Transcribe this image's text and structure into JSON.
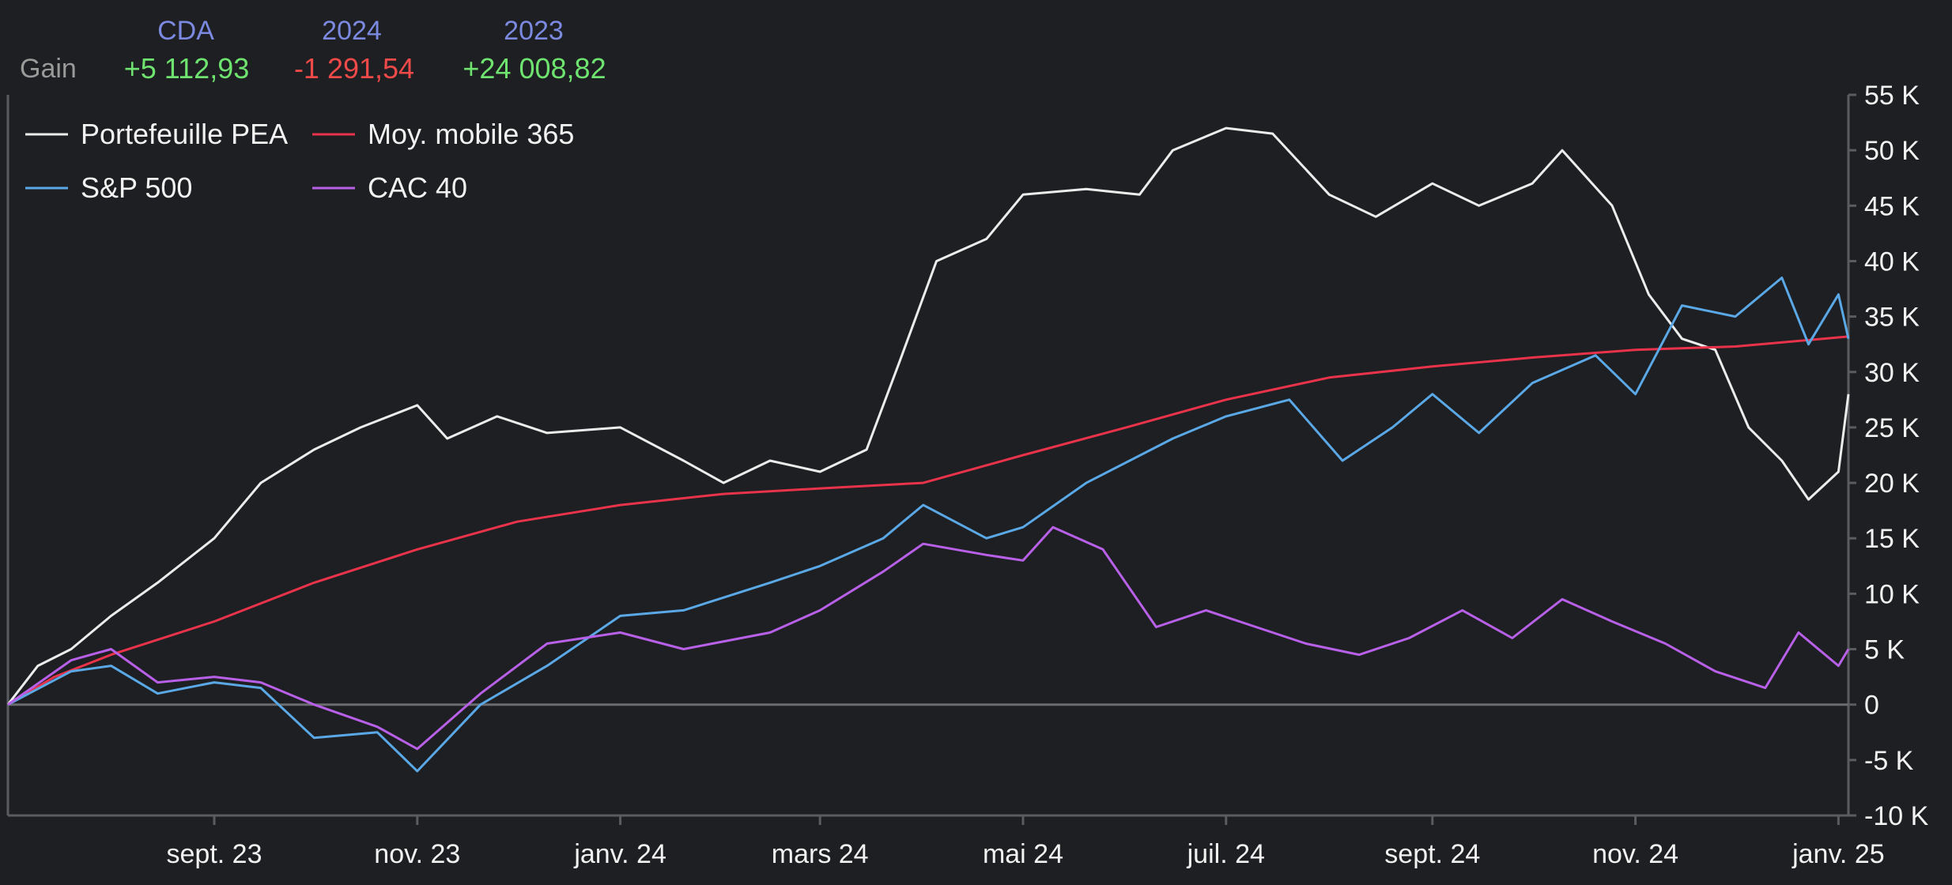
{
  "header": {
    "columns": [
      "CDA",
      "2024",
      "2023"
    ],
    "row_label": "Gain",
    "values": [
      "+5 112,93",
      "-1 291,54",
      "+24 008,82"
    ],
    "value_signs": [
      "pos",
      "neg",
      "pos"
    ]
  },
  "colors": {
    "background": "#1e1f22",
    "axis": "#5a5c60",
    "zero_line": "#6a6c70",
    "text": "#f2f2f2",
    "header_label": "#7b8ae0",
    "positive": "#6fe36f",
    "negative": "#ee4a4a"
  },
  "chart_data": {
    "type": "line",
    "title": "",
    "xlabel": "",
    "ylabel": "",
    "ylim": [
      -10000,
      55000
    ],
    "xlim": [
      "2023-07-01",
      "2025-01-04"
    ],
    "y_ticks": [
      -10000,
      -5000,
      0,
      5000,
      10000,
      15000,
      20000,
      25000,
      30000,
      35000,
      40000,
      45000,
      50000,
      55000
    ],
    "y_tick_labels": [
      "-10 K",
      "-5 K",
      "0",
      "5 K",
      "10 K",
      "15 K",
      "20 K",
      "25 K",
      "30 K",
      "35 K",
      "40 K",
      "45 K",
      "50 K",
      "55 K"
    ],
    "x_ticks": [
      "2023-09-01",
      "2023-11-01",
      "2024-01-01",
      "2024-03-01",
      "2024-05-01",
      "2024-07-01",
      "2024-09-01",
      "2024-11-01",
      "2025-01-01"
    ],
    "x_tick_labels": [
      "sept. 23",
      "nov. 23",
      "janv. 24",
      "mars 24",
      "mai 24",
      "juil. 24",
      "sept. 24",
      "nov. 24",
      "janv. 25"
    ],
    "legend_position": "top-left",
    "grid": false,
    "series": [
      {
        "name": "Portefeuille PEA",
        "color": "#ececec",
        "points": [
          [
            "2023-07-01",
            0
          ],
          [
            "2023-07-10",
            3500
          ],
          [
            "2023-07-20",
            5000
          ],
          [
            "2023-08-01",
            8000
          ],
          [
            "2023-08-15",
            11000
          ],
          [
            "2023-09-01",
            15000
          ],
          [
            "2023-09-15",
            20000
          ],
          [
            "2023-10-01",
            23000
          ],
          [
            "2023-10-15",
            25000
          ],
          [
            "2023-11-01",
            27000
          ],
          [
            "2023-11-10",
            24000
          ],
          [
            "2023-11-25",
            26000
          ],
          [
            "2023-12-10",
            24500
          ],
          [
            "2024-01-01",
            25000
          ],
          [
            "2024-01-20",
            22000
          ],
          [
            "2024-02-01",
            20000
          ],
          [
            "2024-02-15",
            22000
          ],
          [
            "2024-03-01",
            21000
          ],
          [
            "2024-03-15",
            23000
          ],
          [
            "2024-03-25",
            31000
          ],
          [
            "2024-04-05",
            40000
          ],
          [
            "2024-04-20",
            42000
          ],
          [
            "2024-05-01",
            46000
          ],
          [
            "2024-05-20",
            46500
          ],
          [
            "2024-06-05",
            46000
          ],
          [
            "2024-06-15",
            50000
          ],
          [
            "2024-07-01",
            52000
          ],
          [
            "2024-07-15",
            51500
          ],
          [
            "2024-08-01",
            46000
          ],
          [
            "2024-08-15",
            44000
          ],
          [
            "2024-09-01",
            47000
          ],
          [
            "2024-09-15",
            45000
          ],
          [
            "2024-10-01",
            47000
          ],
          [
            "2024-10-10",
            50000
          ],
          [
            "2024-10-25",
            45000
          ],
          [
            "2024-11-05",
            37000
          ],
          [
            "2024-11-15",
            33000
          ],
          [
            "2024-11-25",
            32000
          ],
          [
            "2024-12-05",
            25000
          ],
          [
            "2024-12-15",
            22000
          ],
          [
            "2024-12-23",
            18500
          ],
          [
            "2025-01-01",
            21000
          ],
          [
            "2025-01-04",
            28000
          ]
        ]
      },
      {
        "name": "Moy. mobile 365",
        "color": "#e8334a",
        "points": [
          [
            "2023-07-01",
            0
          ],
          [
            "2023-07-15",
            2500
          ],
          [
            "2023-08-01",
            4500
          ],
          [
            "2023-09-01",
            7500
          ],
          [
            "2023-10-01",
            11000
          ],
          [
            "2023-11-01",
            14000
          ],
          [
            "2023-12-01",
            16500
          ],
          [
            "2024-01-01",
            18000
          ],
          [
            "2024-02-01",
            19000
          ],
          [
            "2024-03-01",
            19500
          ],
          [
            "2024-04-01",
            20000
          ],
          [
            "2024-05-01",
            22500
          ],
          [
            "2024-06-01",
            25000
          ],
          [
            "2024-07-01",
            27500
          ],
          [
            "2024-08-01",
            29500
          ],
          [
            "2024-09-01",
            30500
          ],
          [
            "2024-10-01",
            31300
          ],
          [
            "2024-11-01",
            32000
          ],
          [
            "2024-12-01",
            32300
          ],
          [
            "2025-01-04",
            33200
          ]
        ]
      },
      {
        "name": "S&P 500",
        "color": "#5aa8e6",
        "points": [
          [
            "2023-07-01",
            0
          ],
          [
            "2023-07-20",
            3000
          ],
          [
            "2023-08-01",
            3500
          ],
          [
            "2023-08-15",
            1000
          ],
          [
            "2023-09-01",
            2000
          ],
          [
            "2023-09-15",
            1500
          ],
          [
            "2023-10-01",
            -3000
          ],
          [
            "2023-10-20",
            -2500
          ],
          [
            "2023-11-01",
            -6000
          ],
          [
            "2023-11-20",
            0
          ],
          [
            "2023-12-10",
            3500
          ],
          [
            "2024-01-01",
            8000
          ],
          [
            "2024-01-20",
            8500
          ],
          [
            "2024-02-15",
            11000
          ],
          [
            "2024-03-01",
            12500
          ],
          [
            "2024-03-20",
            15000
          ],
          [
            "2024-04-01",
            18000
          ],
          [
            "2024-04-20",
            15000
          ],
          [
            "2024-05-01",
            16000
          ],
          [
            "2024-05-20",
            20000
          ],
          [
            "2024-06-15",
            24000
          ],
          [
            "2024-07-01",
            26000
          ],
          [
            "2024-07-20",
            27500
          ],
          [
            "2024-08-05",
            22000
          ],
          [
            "2024-08-20",
            25000
          ],
          [
            "2024-09-01",
            28000
          ],
          [
            "2024-09-15",
            24500
          ],
          [
            "2024-10-01",
            29000
          ],
          [
            "2024-10-20",
            31500
          ],
          [
            "2024-11-01",
            28000
          ],
          [
            "2024-11-15",
            36000
          ],
          [
            "2024-12-01",
            35000
          ],
          [
            "2024-12-15",
            38500
          ],
          [
            "2024-12-23",
            32500
          ],
          [
            "2025-01-01",
            37000
          ],
          [
            "2025-01-04",
            33000
          ]
        ]
      },
      {
        "name": "CAC 40",
        "color": "#b860e8",
        "points": [
          [
            "2023-07-01",
            0
          ],
          [
            "2023-07-20",
            4000
          ],
          [
            "2023-08-01",
            5000
          ],
          [
            "2023-08-15",
            2000
          ],
          [
            "2023-09-01",
            2500
          ],
          [
            "2023-09-15",
            2000
          ],
          [
            "2023-10-01",
            0
          ],
          [
            "2023-10-20",
            -2000
          ],
          [
            "2023-11-01",
            -4000
          ],
          [
            "2023-11-20",
            1000
          ],
          [
            "2023-12-10",
            5500
          ],
          [
            "2024-01-01",
            6500
          ],
          [
            "2024-01-20",
            5000
          ],
          [
            "2024-02-15",
            6500
          ],
          [
            "2024-03-01",
            8500
          ],
          [
            "2024-03-20",
            12000
          ],
          [
            "2024-04-01",
            14500
          ],
          [
            "2024-04-20",
            13500
          ],
          [
            "2024-05-01",
            13000
          ],
          [
            "2024-05-10",
            16000
          ],
          [
            "2024-05-25",
            14000
          ],
          [
            "2024-06-10",
            7000
          ],
          [
            "2024-06-25",
            8500
          ],
          [
            "2024-07-10",
            7000
          ],
          [
            "2024-07-25",
            5500
          ],
          [
            "2024-08-10",
            4500
          ],
          [
            "2024-08-25",
            6000
          ],
          [
            "2024-09-10",
            8500
          ],
          [
            "2024-09-25",
            6000
          ],
          [
            "2024-10-10",
            9500
          ],
          [
            "2024-10-25",
            7500
          ],
          [
            "2024-11-10",
            5500
          ],
          [
            "2024-11-25",
            3000
          ],
          [
            "2024-12-10",
            1500
          ],
          [
            "2024-12-20",
            6500
          ],
          [
            "2025-01-01",
            3500
          ],
          [
            "2025-01-04",
            5000
          ]
        ]
      }
    ]
  }
}
